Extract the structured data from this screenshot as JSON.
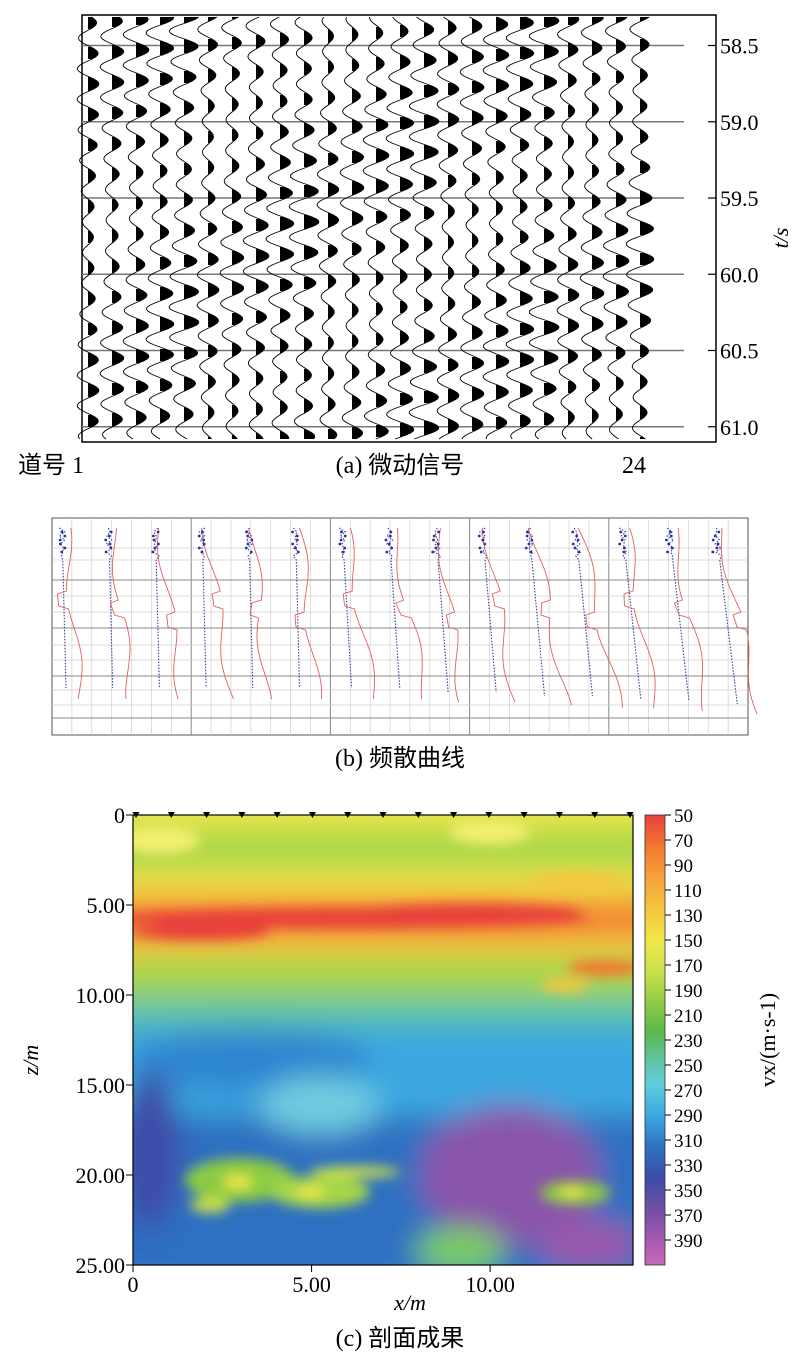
{
  "figures": [
    {
      "id": "a",
      "caption": "(a) 微动信号",
      "trace_start_label": "道号 1",
      "trace_end_label": "24",
      "y_axis_label": "t/s",
      "time_ticks": [
        "58.5",
        "59.0",
        "59.5",
        "60.0",
        "60.5",
        "61.0"
      ],
      "time_tick_values": [
        58.5,
        59.0,
        59.5,
        60.0,
        60.5,
        61.0
      ],
      "trace_count": 24
    },
    {
      "id": "b",
      "caption": "(b) 频散曲线",
      "panel_count": 15,
      "curve_colors": {
        "blue": "#3a3f9e",
        "red": "#e06060"
      }
    },
    {
      "id": "c",
      "caption": "(c) 剖面成果",
      "x_axis_label": "x/m",
      "y_axis_label": "z/m",
      "x_ticks": [
        "0",
        "5.00",
        "10.00"
      ],
      "x_tick_values": [
        0,
        5,
        10
      ],
      "y_ticks": [
        "0",
        "5.00",
        "10.00",
        "15.00",
        "20.00",
        "25.00"
      ],
      "y_tick_values": [
        0,
        5,
        10,
        15,
        20,
        25
      ],
      "colorbar_label": "vx/(m·s-1)",
      "colorbar_ticks": [
        "50",
        "70",
        "90",
        "110",
        "130",
        "150",
        "170",
        "190",
        "210",
        "230",
        "250",
        "270",
        "290",
        "310",
        "330",
        "350",
        "370",
        "390"
      ],
      "colorbar_colors": [
        "#e8413a",
        "#f2772f",
        "#f7a23a",
        "#f5c63f",
        "#eee848",
        "#c9e04c",
        "#8cca45",
        "#5cb84a",
        "#61c39a",
        "#5fcde0",
        "#3aa7e0",
        "#2f6fc1",
        "#3d4ca8",
        "#7c51a6",
        "#a85bb0",
        "#c66ab8"
      ]
    }
  ],
  "chart_data": [
    {
      "type": "line",
      "title": "",
      "caption": "(a) 微动信号",
      "xlabel": "道号",
      "ylabel": "t/s",
      "x_range": [
        1,
        24
      ],
      "ylim": [
        58.3,
        61.1
      ],
      "y_ticks": [
        58.5,
        59.0,
        59.5,
        60.0,
        60.5,
        61.0
      ],
      "series_count": 24
    },
    {
      "type": "heatmap",
      "title": "",
      "caption": "(c) 剖面成果",
      "xlabel": "x/m",
      "ylabel": "z/m",
      "xlim": [
        0,
        14
      ],
      "ylim": [
        0,
        25
      ],
      "x_ticks": [
        0,
        5.0,
        10.0
      ],
      "y_ticks": [
        0,
        5.0,
        10.0,
        15.0,
        20.0,
        25.0
      ],
      "colorbar": {
        "label": "vx/(m·s-1)",
        "range": [
          50,
          410
        ],
        "ticks": [
          50,
          70,
          90,
          110,
          130,
          150,
          170,
          190,
          210,
          230,
          250,
          270,
          290,
          310,
          330,
          350,
          370,
          390
        ]
      },
      "layers": [
        {
          "depth": [
            0,
            1.5
          ],
          "velocity_approx": 150
        },
        {
          "depth": [
            1.5,
            3.5
          ],
          "velocity_approx": 200
        },
        {
          "depth": [
            3.5,
            7.5
          ],
          "velocity_approx": 90
        },
        {
          "depth": [
            7.5,
            10
          ],
          "velocity_approx": 190
        },
        {
          "depth": [
            10,
            17
          ],
          "velocity_approx": 290
        },
        {
          "depth": [
            17,
            25
          ],
          "velocity_approx": 340
        }
      ]
    }
  ]
}
